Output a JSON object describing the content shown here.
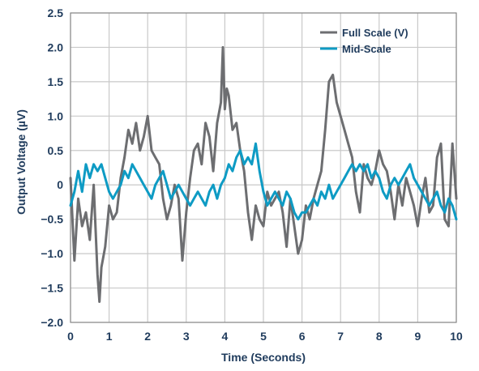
{
  "chart_data": {
    "type": "line",
    "xlabel": "Time (Seconds)",
    "ylabel": "Output Voltage (µV)",
    "xlim": [
      0,
      10
    ],
    "ylim": [
      -2.0,
      2.5
    ],
    "x_ticks": [
      0,
      1,
      2,
      3,
      4,
      5,
      6,
      7,
      8,
      9,
      10
    ],
    "x_tick_labels": [
      "0",
      "1",
      "2",
      "3",
      "4",
      "5",
      "6",
      "7",
      "8",
      "9",
      "10"
    ],
    "y_ticks": [
      2.5,
      2.0,
      1.5,
      1.0,
      0.5,
      0,
      -0.5,
      -1.0,
      -1.5,
      -2.0
    ],
    "y_tick_labels": [
      "2.5",
      "2.0",
      "1.5",
      "1.0",
      "0.5",
      "0",
      "−0.5",
      "−1.0",
      "−1.5",
      "−2.0"
    ],
    "grid": true,
    "legend_position": "top-right",
    "series": [
      {
        "name": "Full Scale (V)",
        "color": "#6d6e71",
        "x": [
          0,
          0.1,
          0.2,
          0.3,
          0.4,
          0.5,
          0.6,
          0.7,
          0.75,
          0.8,
          0.9,
          1,
          1.1,
          1.2,
          1.3,
          1.4,
          1.5,
          1.6,
          1.7,
          1.8,
          1.9,
          2,
          2.1,
          2.2,
          2.3,
          2.4,
          2.5,
          2.6,
          2.7,
          2.8,
          2.9,
          3,
          3.1,
          3.2,
          3.3,
          3.4,
          3.5,
          3.6,
          3.7,
          3.8,
          3.9,
          3.95,
          4,
          4.05,
          4.1,
          4.2,
          4.3,
          4.4,
          4.5,
          4.6,
          4.7,
          4.8,
          4.9,
          5,
          5.1,
          5.2,
          5.3,
          5.4,
          5.5,
          5.6,
          5.7,
          5.8,
          5.9,
          6,
          6.1,
          6.2,
          6.3,
          6.4,
          6.5,
          6.6,
          6.7,
          6.8,
          6.9,
          7,
          7.1,
          7.2,
          7.3,
          7.4,
          7.5,
          7.6,
          7.7,
          7.8,
          7.9,
          8,
          8.1,
          8.2,
          8.3,
          8.4,
          8.5,
          8.6,
          8.7,
          8.8,
          8.9,
          9,
          9.1,
          9.2,
          9.3,
          9.4,
          9.5,
          9.6,
          9.7,
          9.8,
          9.9,
          10
        ],
        "values": [
          0.1,
          -1.1,
          -0.2,
          -0.6,
          -0.4,
          -0.8,
          0.0,
          -1.3,
          -1.7,
          -1.2,
          -0.9,
          -0.3,
          -0.5,
          -0.4,
          0.1,
          0.4,
          0.8,
          0.6,
          0.9,
          0.5,
          0.7,
          1.0,
          0.5,
          0.4,
          0.3,
          -0.2,
          -0.5,
          -0.3,
          0.0,
          -0.2,
          -1.1,
          -0.4,
          0.1,
          0.5,
          0.6,
          0.3,
          0.9,
          0.7,
          0.2,
          0.9,
          1.2,
          2.0,
          1.1,
          1.4,
          1.3,
          0.8,
          0.9,
          0.5,
          0.2,
          -0.4,
          -0.8,
          -0.3,
          -0.5,
          -0.6,
          -0.1,
          -0.3,
          -0.2,
          -0.1,
          -0.4,
          -0.9,
          -0.2,
          -0.6,
          -1.0,
          -0.8,
          -0.3,
          -0.5,
          -0.2,
          0.0,
          0.2,
          0.8,
          1.5,
          1.6,
          1.2,
          1.0,
          0.8,
          0.6,
          0.4,
          -0.1,
          -0.4,
          0.3,
          0.1,
          0.0,
          0.2,
          0.5,
          0.3,
          0.2,
          -0.1,
          -0.5,
          0.0,
          -0.3,
          0.1,
          -0.1,
          -0.3,
          -0.6,
          -0.2,
          0.1,
          -0.4,
          -0.3,
          0.4,
          0.6,
          -0.5,
          -0.6,
          0.6,
          -0.2
        ]
      },
      {
        "name": "Mid-Scale",
        "color": "#0e9bc4",
        "x": [
          0,
          0.1,
          0.2,
          0.3,
          0.4,
          0.5,
          0.6,
          0.7,
          0.8,
          0.9,
          1,
          1.1,
          1.2,
          1.3,
          1.4,
          1.5,
          1.6,
          1.7,
          1.8,
          1.9,
          2,
          2.1,
          2.2,
          2.3,
          2.4,
          2.5,
          2.6,
          2.7,
          2.8,
          2.9,
          3,
          3.1,
          3.2,
          3.3,
          3.4,
          3.5,
          3.6,
          3.7,
          3.8,
          3.9,
          4,
          4.1,
          4.2,
          4.3,
          4.4,
          4.5,
          4.6,
          4.7,
          4.8,
          4.9,
          5,
          5.1,
          5.2,
          5.3,
          5.4,
          5.5,
          5.6,
          5.7,
          5.8,
          5.9,
          6,
          6.1,
          6.2,
          6.3,
          6.4,
          6.5,
          6.6,
          6.7,
          6.8,
          6.9,
          7,
          7.1,
          7.2,
          7.3,
          7.4,
          7.5,
          7.6,
          7.7,
          7.8,
          7.9,
          8,
          8.1,
          8.2,
          8.3,
          8.4,
          8.5,
          8.6,
          8.7,
          8.8,
          8.9,
          9,
          9.1,
          9.2,
          9.3,
          9.4,
          9.5,
          9.6,
          9.7,
          9.8,
          9.9,
          10
        ],
        "values": [
          -0.3,
          -0.1,
          0.2,
          -0.1,
          0.3,
          0.1,
          0.3,
          0.2,
          0.3,
          0.1,
          -0.1,
          -0.2,
          -0.1,
          0.0,
          0.2,
          0.1,
          0.3,
          0.2,
          0.1,
          0.0,
          -0.1,
          -0.2,
          0.0,
          0.1,
          0.2,
          0.0,
          -0.2,
          -0.1,
          0.0,
          -0.1,
          -0.2,
          -0.3,
          -0.2,
          -0.1,
          -0.2,
          -0.3,
          -0.1,
          0.0,
          -0.2,
          0.0,
          0.1,
          0.3,
          0.2,
          0.4,
          0.5,
          0.3,
          0.4,
          0.3,
          0.6,
          0.2,
          -0.1,
          -0.3,
          -0.2,
          -0.1,
          -0.2,
          -0.3,
          -0.1,
          -0.2,
          -0.4,
          -0.5,
          -0.4,
          -0.4,
          -0.3,
          -0.2,
          -0.3,
          -0.1,
          -0.2,
          0.0,
          -0.2,
          -0.1,
          0.0,
          0.1,
          0.2,
          0.3,
          0.2,
          0.3,
          0.2,
          0.3,
          0.1,
          0.2,
          0.1,
          -0.1,
          -0.2,
          0.0,
          0.1,
          0.0,
          0.1,
          0.2,
          0.3,
          0.1,
          0.0,
          -0.1,
          -0.2,
          -0.3,
          -0.2,
          -0.1,
          -0.3,
          -0.4,
          -0.2,
          -0.3,
          -0.5
        ]
      }
    ]
  }
}
